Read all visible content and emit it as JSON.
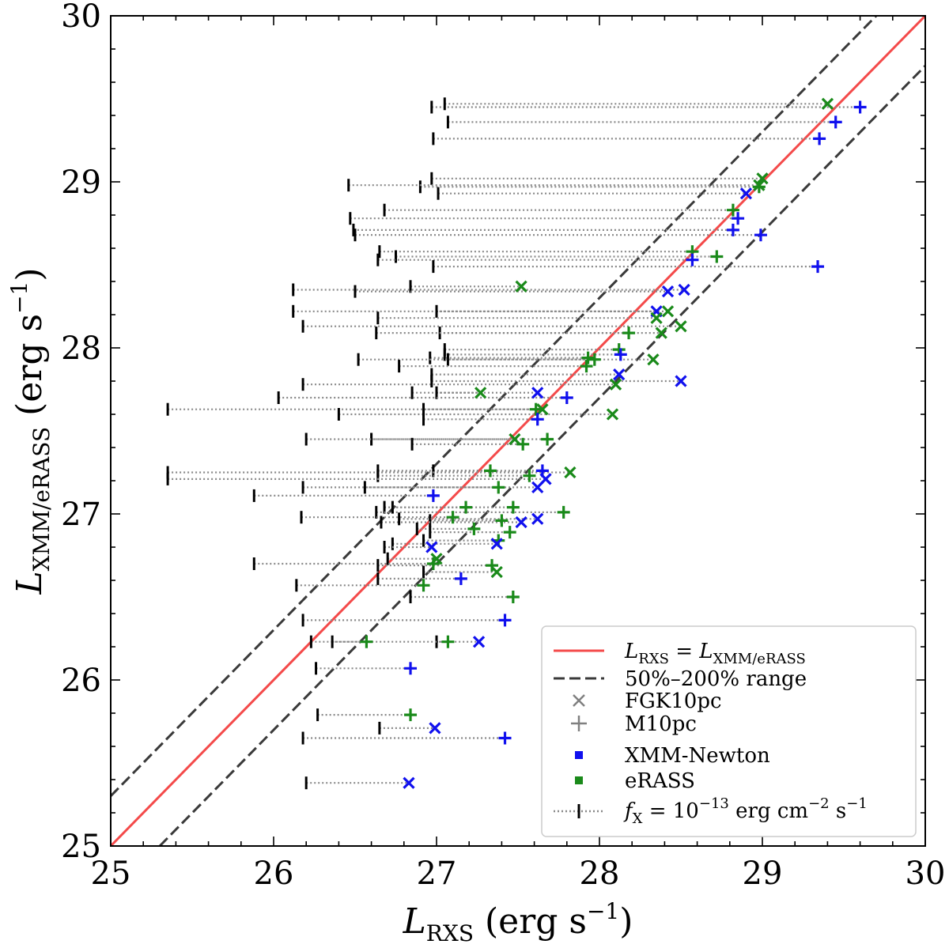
{
  "chart_data": {
    "type": "scatter",
    "xlabel": {
      "main": "L",
      "sub": "RXS",
      "rest": " (erg s",
      "sup": "−1",
      "close": ")"
    },
    "ylabel": {
      "main": "L",
      "sub": "XMM/eRASS",
      "rest": " (erg s",
      "sup": "−1",
      "close": ")"
    },
    "xlim": [
      25,
      30
    ],
    "ylim": [
      25,
      30
    ],
    "xticks": [
      "25",
      "26",
      "27",
      "28",
      "29",
      "30"
    ],
    "yticks": [
      "25",
      "26",
      "27",
      "28",
      "29",
      "30"
    ],
    "grid": false,
    "legend_position": "bottom-right",
    "legend": {
      "one_to_one": {
        "main": "L",
        "sub": "RXS",
        "eq": " = ",
        "main2": "L",
        "sub2": "XMM/eRASS"
      },
      "range": "50%–200% range",
      "fgk": "FGK10pc",
      "m": "M10pc",
      "xmm": "XMM-Newton",
      "erass": "eRASS",
      "flux": {
        "main": "f",
        "sub": "X",
        "eq": " = 10",
        "sup": "−13",
        "unit": " erg cm",
        "sup2": "−2",
        "unit2": " s",
        "sup3": "−1"
      }
    },
    "colors": {
      "one_to_one": "#f44a4a",
      "range": "#3a3a3a",
      "xmm": "#1010ee",
      "erass": "#1a8a1a",
      "flux_line": "#888888",
      "legend_marker": "#808080"
    },
    "lines": {
      "one_to_one": [
        [
          25,
          25
        ],
        [
          30,
          30
        ]
      ],
      "upper_200": [
        [
          25,
          25.301
        ],
        [
          29.699,
          30
        ]
      ],
      "lower_50": [
        [
          25.301,
          25
        ],
        [
          30,
          29.699
        ]
      ]
    },
    "points": [
      {
        "x": 29.6,
        "y": 29.45,
        "sample": "M10pc",
        "mission": "XMM-Newton",
        "fx_limit": 26.97
      },
      {
        "x": 29.4,
        "y": 29.47,
        "sample": "FGK10pc",
        "mission": "eRASS",
        "fx_limit": 27.05
      },
      {
        "x": 29.45,
        "y": 29.36,
        "sample": "M10pc",
        "mission": "XMM-Newton",
        "fx_limit": 27.07
      },
      {
        "x": 29.35,
        "y": 29.26,
        "sample": "M10pc",
        "mission": "XMM-Newton",
        "fx_limit": 26.98
      },
      {
        "x": 29.0,
        "y": 29.02,
        "sample": "FGK10pc",
        "mission": "eRASS",
        "fx_limit": 26.97
      },
      {
        "x": 28.98,
        "y": 28.97,
        "sample": "M10pc",
        "mission": "eRASS",
        "fx_limit": 26.9
      },
      {
        "x": 28.9,
        "y": 28.93,
        "sample": "FGK10pc",
        "mission": "XMM-Newton",
        "fx_limit": 27.01
      },
      {
        "x": 28.98,
        "y": 28.98,
        "sample": "FGK10pc",
        "mission": "eRASS",
        "fx_limit": 26.46
      },
      {
        "x": 28.82,
        "y": 28.83,
        "sample": "M10pc",
        "mission": "eRASS",
        "fx_limit": 26.68
      },
      {
        "x": 28.85,
        "y": 28.78,
        "sample": "M10pc",
        "mission": "XMM-Newton",
        "fx_limit": 26.47
      },
      {
        "x": 28.82,
        "y": 28.71,
        "sample": "M10pc",
        "mission": "XMM-Newton",
        "fx_limit": 26.49
      },
      {
        "x": 28.99,
        "y": 28.68,
        "sample": "M10pc",
        "mission": "XMM-Newton",
        "fx_limit": 26.5
      },
      {
        "x": 28.57,
        "y": 28.58,
        "sample": "M10pc",
        "mission": "eRASS",
        "fx_limit": 26.65
      },
      {
        "x": 28.72,
        "y": 28.55,
        "sample": "M10pc",
        "mission": "eRASS",
        "fx_limit": 26.75
      },
      {
        "x": 28.57,
        "y": 28.53,
        "sample": "M10pc",
        "mission": "XMM-Newton",
        "fx_limit": 26.64
      },
      {
        "x": 29.34,
        "y": 28.49,
        "sample": "M10pc",
        "mission": "XMM-Newton",
        "fx_limit": 26.98
      },
      {
        "x": 27.52,
        "y": 28.37,
        "sample": "FGK10pc",
        "mission": "eRASS",
        "fx_limit": 26.84
      },
      {
        "x": 28.42,
        "y": 28.34,
        "sample": "FGK10pc",
        "mission": "XMM-Newton",
        "fx_limit": 26.5
      },
      {
        "x": 28.52,
        "y": 28.35,
        "sample": "FGK10pc",
        "mission": "XMM-Newton",
        "fx_limit": 26.12
      },
      {
        "x": 28.35,
        "y": 28.22,
        "sample": "FGK10pc",
        "mission": "XMM-Newton",
        "fx_limit": 26.12
      },
      {
        "x": 28.42,
        "y": 28.22,
        "sample": "FGK10pc",
        "mission": "eRASS",
        "fx_limit": 27.0
      },
      {
        "x": 28.35,
        "y": 28.18,
        "sample": "FGK10pc",
        "mission": "eRASS",
        "fx_limit": 26.64
      },
      {
        "x": 28.5,
        "y": 28.13,
        "sample": "FGK10pc",
        "mission": "eRASS",
        "fx_limit": 26.18
      },
      {
        "x": 28.18,
        "y": 28.09,
        "sample": "M10pc",
        "mission": "eRASS",
        "fx_limit": 27.02
      },
      {
        "x": 28.38,
        "y": 28.09,
        "sample": "FGK10pc",
        "mission": "eRASS",
        "fx_limit": 26.63
      },
      {
        "x": 28.12,
        "y": 27.99,
        "sample": "M10pc",
        "mission": "eRASS",
        "fx_limit": 27.05
      },
      {
        "x": 28.13,
        "y": 27.96,
        "sample": "M10pc",
        "mission": "XMM-Newton",
        "fx_limit": 27.05
      },
      {
        "x": 27.93,
        "y": 27.94,
        "sample": "M10pc",
        "mission": "eRASS",
        "fx_limit": 26.96
      },
      {
        "x": 27.97,
        "y": 27.93,
        "sample": "M10pc",
        "mission": "eRASS",
        "fx_limit": 27.07
      },
      {
        "x": 28.33,
        "y": 27.93,
        "sample": "FGK10pc",
        "mission": "eRASS",
        "fx_limit": 26.52
      },
      {
        "x": 27.92,
        "y": 27.89,
        "sample": "M10pc",
        "mission": "eRASS",
        "fx_limit": 26.77
      },
      {
        "x": 28.12,
        "y": 27.84,
        "sample": "FGK10pc",
        "mission": "XMM-Newton",
        "fx_limit": 26.97
      },
      {
        "x": 28.1,
        "y": 27.78,
        "sample": "FGK10pc",
        "mission": "eRASS",
        "fx_limit": 26.18
      },
      {
        "x": 28.5,
        "y": 27.8,
        "sample": "FGK10pc",
        "mission": "XMM-Newton",
        "fx_limit": 26.97
      },
      {
        "x": 27.27,
        "y": 27.73,
        "sample": "FGK10pc",
        "mission": "eRASS",
        "fx_limit": 26.85
      },
      {
        "x": 27.62,
        "y": 27.73,
        "sample": "FGK10pc",
        "mission": "XMM-Newton",
        "fx_limit": 27.0
      },
      {
        "x": 27.8,
        "y": 27.7,
        "sample": "M10pc",
        "mission": "XMM-Newton",
        "fx_limit": 26.03
      },
      {
        "x": 27.65,
        "y": 27.63,
        "sample": "FGK10pc",
        "mission": "eRASS",
        "fx_limit": 26.92
      },
      {
        "x": 27.61,
        "y": 27.63,
        "sample": "M10pc",
        "mission": "eRASS",
        "fx_limit": 25.35
      },
      {
        "x": 28.08,
        "y": 27.6,
        "sample": "FGK10pc",
        "mission": "eRASS",
        "fx_limit": 26.4
      },
      {
        "x": 27.62,
        "y": 27.57,
        "sample": "M10pc",
        "mission": "XMM-Newton",
        "fx_limit": 26.92
      },
      {
        "x": 27.48,
        "y": 27.45,
        "sample": "FGK10pc",
        "mission": "eRASS",
        "fx_limit": 26.6
      },
      {
        "x": 27.68,
        "y": 27.45,
        "sample": "M10pc",
        "mission": "eRASS",
        "fx_limit": 26.2
      },
      {
        "x": 27.53,
        "y": 27.42,
        "sample": "M10pc",
        "mission": "eRASS",
        "fx_limit": 26.85
      },
      {
        "x": 27.33,
        "y": 27.26,
        "sample": "M10pc",
        "mission": "eRASS",
        "fx_limit": 26.64
      },
      {
        "x": 27.65,
        "y": 27.26,
        "sample": "M10pc",
        "mission": "XMM-Newton",
        "fx_limit": 26.98
      },
      {
        "x": 27.82,
        "y": 27.25,
        "sample": "FGK10pc",
        "mission": "eRASS",
        "fx_limit": 25.35
      },
      {
        "x": 27.57,
        "y": 27.23,
        "sample": "M10pc",
        "mission": "eRASS",
        "fx_limit": 26.64
      },
      {
        "x": 27.67,
        "y": 27.21,
        "sample": "FGK10pc",
        "mission": "XMM-Newton",
        "fx_limit": 25.35
      },
      {
        "x": 27.62,
        "y": 27.16,
        "sample": "FGK10pc",
        "mission": "XMM-Newton",
        "fx_limit": 26.18
      },
      {
        "x": 27.38,
        "y": 27.16,
        "sample": "M10pc",
        "mission": "eRASS",
        "fx_limit": 26.56
      },
      {
        "x": 26.98,
        "y": 27.11,
        "sample": "M10pc",
        "mission": "XMM-Newton",
        "fx_limit": 25.88
      },
      {
        "x": 27.47,
        "y": 27.04,
        "sample": "M10pc",
        "mission": "eRASS",
        "fx_limit": 26.68
      },
      {
        "x": 27.78,
        "y": 27.01,
        "sample": "M10pc",
        "mission": "eRASS",
        "fx_limit": 26.63
      },
      {
        "x": 27.18,
        "y": 27.04,
        "sample": "M10pc",
        "mission": "eRASS",
        "fx_limit": 26.73
      },
      {
        "x": 27.1,
        "y": 26.98,
        "sample": "M10pc",
        "mission": "eRASS",
        "fx_limit": 26.17
      },
      {
        "x": 27.4,
        "y": 26.96,
        "sample": "M10pc",
        "mission": "eRASS",
        "fx_limit": 26.96
      },
      {
        "x": 27.52,
        "y": 26.95,
        "sample": "FGK10pc",
        "mission": "XMM-Newton",
        "fx_limit": 26.66
      },
      {
        "x": 27.62,
        "y": 26.97,
        "sample": "FGK10pc",
        "mission": "XMM-Newton",
        "fx_limit": 26.77
      },
      {
        "x": 27.23,
        "y": 26.91,
        "sample": "M10pc",
        "mission": "eRASS",
        "fx_limit": 26.88
      },
      {
        "x": 27.45,
        "y": 26.89,
        "sample": "M10pc",
        "mission": "eRASS",
        "fx_limit": 26.96
      },
      {
        "x": 27.38,
        "y": 26.84,
        "sample": "M10pc",
        "mission": "eRASS",
        "fx_limit": 26.92
      },
      {
        "x": 27.37,
        "y": 26.82,
        "sample": "FGK10pc",
        "mission": "XMM-Newton",
        "fx_limit": 26.73
      },
      {
        "x": 26.97,
        "y": 26.8,
        "sample": "FGK10pc",
        "mission": "XMM-Newton",
        "fx_limit": 26.68
      },
      {
        "x": 27.0,
        "y": 26.73,
        "sample": "FGK10pc",
        "mission": "eRASS",
        "fx_limit": 26.7
      },
      {
        "x": 26.98,
        "y": 26.7,
        "sample": "M10pc",
        "mission": "eRASS",
        "fx_limit": 25.88
      },
      {
        "x": 27.34,
        "y": 26.69,
        "sample": "M10pc",
        "mission": "eRASS",
        "fx_limit": 26.64
      },
      {
        "x": 27.37,
        "y": 26.65,
        "sample": "FGK10pc",
        "mission": "eRASS",
        "fx_limit": 26.92
      },
      {
        "x": 27.15,
        "y": 26.61,
        "sample": "M10pc",
        "mission": "XMM-Newton",
        "fx_limit": 26.64
      },
      {
        "x": 26.92,
        "y": 26.57,
        "sample": "M10pc",
        "mission": "eRASS",
        "fx_limit": 26.14
      },
      {
        "x": 27.47,
        "y": 26.5,
        "sample": "M10pc",
        "mission": "eRASS",
        "fx_limit": 26.84
      },
      {
        "x": 27.42,
        "y": 26.36,
        "sample": "M10pc",
        "mission": "XMM-Newton",
        "fx_limit": 26.18
      },
      {
        "x": 26.57,
        "y": 26.23,
        "sample": "M10pc",
        "mission": "eRASS",
        "fx_limit": 26.23
      },
      {
        "x": 27.07,
        "y": 26.23,
        "sample": "M10pc",
        "mission": "eRASS",
        "fx_limit": 27.0
      },
      {
        "x": 27.26,
        "y": 26.23,
        "sample": "FGK10pc",
        "mission": "XMM-Newton",
        "fx_limit": 26.36
      },
      {
        "x": 26.84,
        "y": 26.07,
        "sample": "M10pc",
        "mission": "XMM-Newton",
        "fx_limit": 26.26
      },
      {
        "x": 26.84,
        "y": 25.79,
        "sample": "M10pc",
        "mission": "eRASS",
        "fx_limit": 26.27
      },
      {
        "x": 26.99,
        "y": 25.71,
        "sample": "FGK10pc",
        "mission": "XMM-Newton",
        "fx_limit": 26.65
      },
      {
        "x": 27.42,
        "y": 25.65,
        "sample": "M10pc",
        "mission": "XMM-Newton",
        "fx_limit": 26.18
      },
      {
        "x": 26.83,
        "y": 25.38,
        "sample": "FGK10pc",
        "mission": "XMM-Newton",
        "fx_limit": 26.2
      }
    ]
  }
}
